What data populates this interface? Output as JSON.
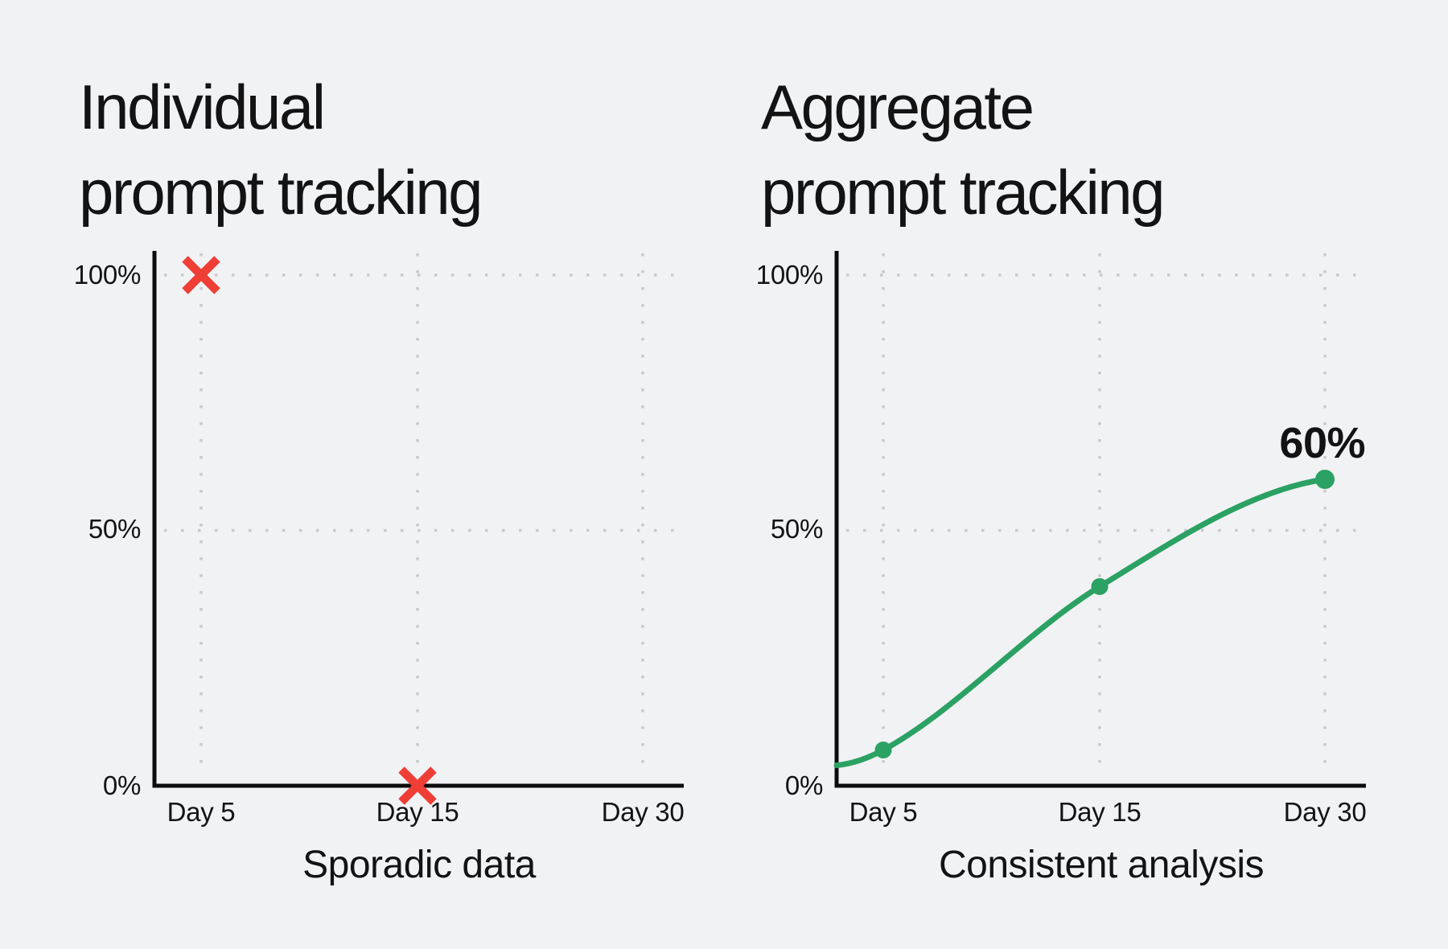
{
  "colors": {
    "background": "#f1f2f4",
    "text": "#131314",
    "axis": "#0c0c0c",
    "grid_dot": "#c8c9cc",
    "red": "#ee3e36",
    "green": "#2ba163"
  },
  "chart_data": [
    {
      "type": "scatter",
      "title_lines": [
        "Individual",
        "prompt tracking"
      ],
      "subtitle": "Sporadic data",
      "marker": "x",
      "marker_color": "#ee3e36",
      "categories": [
        "Day 5",
        "Day 15",
        "Day 30"
      ],
      "y_tick_labels": [
        "100%",
        "50%",
        "0%"
      ],
      "ylim": [
        0,
        100
      ],
      "grid": "dotted",
      "legend": "none",
      "points": [
        {
          "category": "Day 5",
          "value": 100
        },
        {
          "category": "Day 15",
          "value": 0
        }
      ]
    },
    {
      "type": "line",
      "title_lines": [
        "Aggregate",
        "prompt tracking"
      ],
      "subtitle": "Consistent analysis",
      "marker": "dot",
      "line_color": "#2ba163",
      "categories": [
        "Day 5",
        "Day 15",
        "Day 30"
      ],
      "y_tick_labels": [
        "100%",
        "50%",
        "0%"
      ],
      "ylim": [
        0,
        100
      ],
      "grid": "dotted",
      "legend": "none",
      "line_start_value": 4,
      "points": [
        {
          "category": "Day 5",
          "value": 7
        },
        {
          "category": "Day 15",
          "value": 39
        },
        {
          "category": "Day 30",
          "value": 60
        }
      ],
      "annotation": "60%"
    }
  ]
}
